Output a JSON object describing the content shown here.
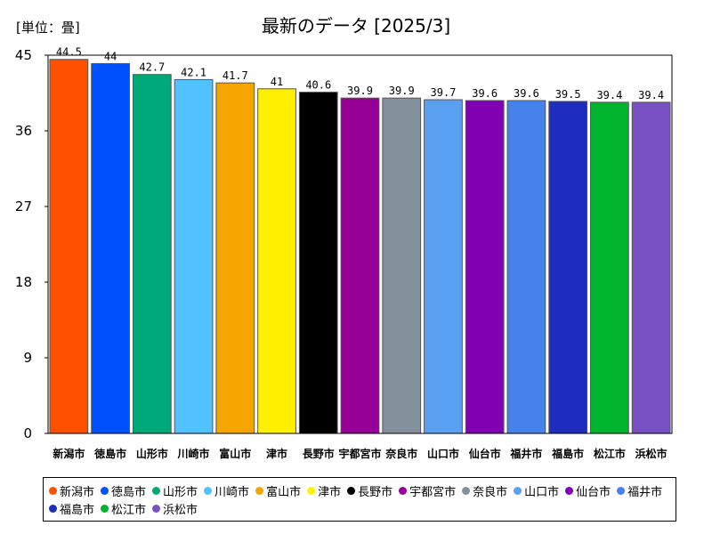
{
  "chart_data": {
    "type": "bar",
    "title": "最新のデータ [2025/3]",
    "unit_label": "[単位：畳]",
    "xlabel": "",
    "ylabel": "",
    "ylim": [
      0,
      45
    ],
    "yticks": [
      0,
      9,
      18,
      27,
      36,
      45
    ],
    "grid": false,
    "legend_placement": "bottom",
    "categories": [
      "新潟市",
      "徳島市",
      "山形市",
      "川崎市",
      "富山市",
      "津市",
      "長野市",
      "宇都宮市",
      "奈良市",
      "山口市",
      "仙台市",
      "福井市",
      "福島市",
      "松江市",
      "浜松市"
    ],
    "values": [
      44.5,
      44,
      42.7,
      42.1,
      41.7,
      41,
      40.6,
      39.9,
      39.9,
      39.7,
      39.6,
      39.6,
      39.5,
      39.4,
      39.4
    ],
    "value_labels": [
      "44.5",
      "44",
      "42.7",
      "42.1",
      "41.7",
      "41",
      "40.6",
      "39.9",
      "39.9",
      "39.7",
      "39.6",
      "39.6",
      "39.5",
      "39.4",
      "39.4"
    ],
    "colors": [
      "#ff5000",
      "#0050ff",
      "#00aa78",
      "#50c3ff",
      "#f5a500",
      "#fff000",
      "#000000",
      "#960096",
      "#82919b",
      "#5aa0f0",
      "#8200b4",
      "#4682eb",
      "#1e2dbe",
      "#00b42d",
      "#7850c3"
    ]
  }
}
